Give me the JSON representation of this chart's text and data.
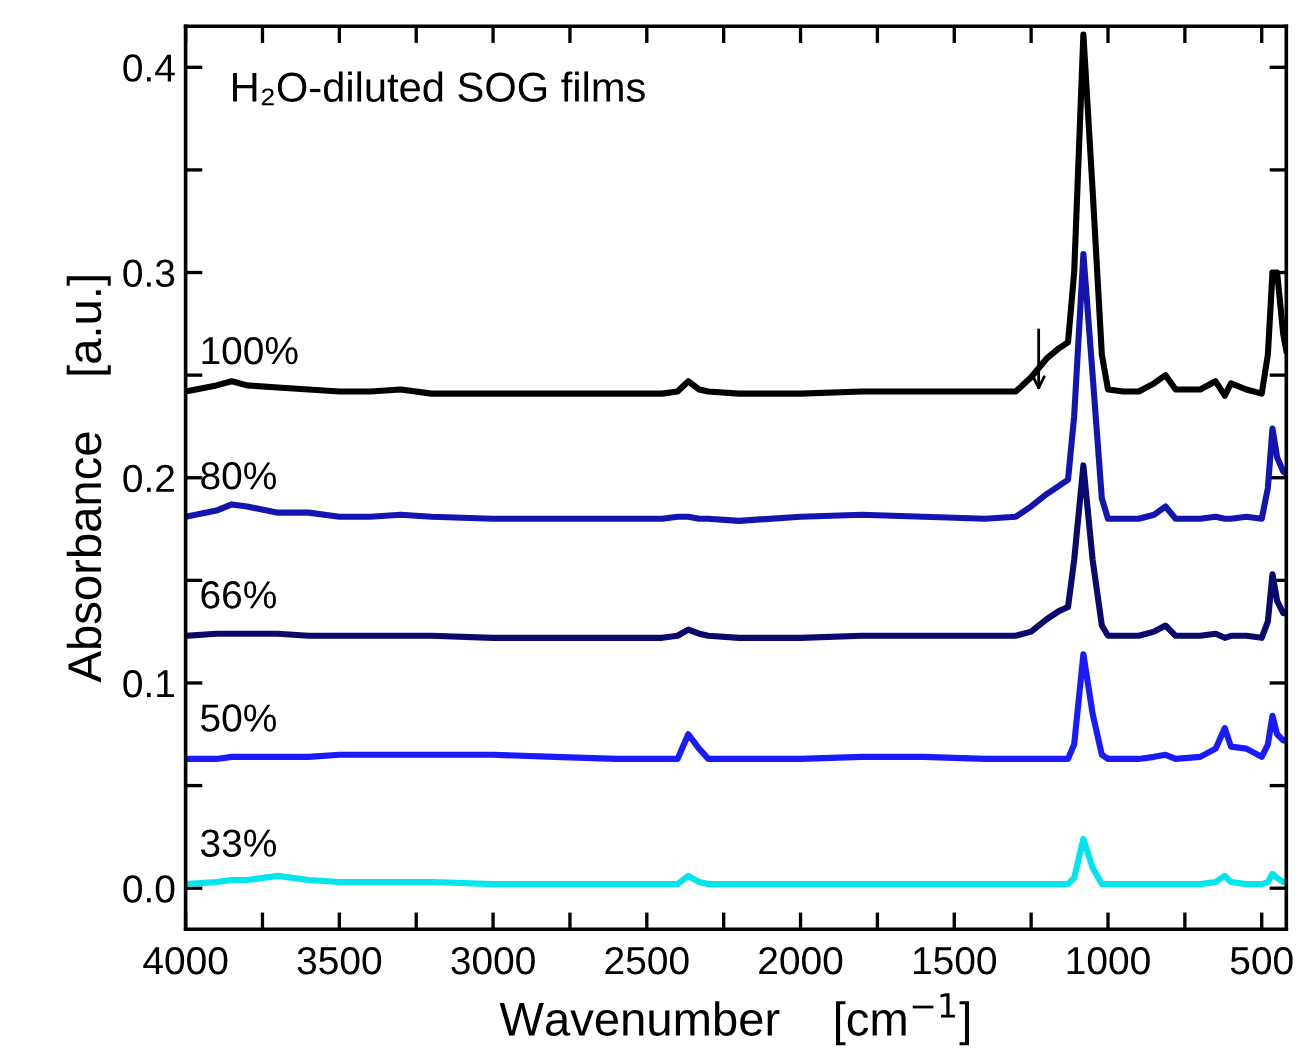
{
  "chart_data": {
    "type": "line",
    "title": "H₂O-diluted SOG films",
    "xlabel": "Wavenumber    [cm$^{−1}$]",
    "ylabel": "Absorbance    [a.u.]",
    "x": [
      4000,
      3900,
      3850,
      3800,
      3700,
      3600,
      3500,
      3400,
      3300,
      3200,
      3000,
      2800,
      2600,
      2450,
      2400,
      2365,
      2330,
      2300,
      2200,
      2000,
      1800,
      1600,
      1400,
      1300,
      1250,
      1200,
      1160,
      1130,
      1110,
      1080,
      1050,
      1020,
      1000,
      950,
      900,
      850,
      813,
      780,
      700,
      650,
      620,
      600,
      550,
      500,
      480,
      465,
      450,
      430,
      420
    ],
    "series": [
      {
        "name": "100%",
        "color": "#000000",
        "values": [
          0.242,
          0.245,
          0.247,
          0.245,
          0.244,
          0.243,
          0.242,
          0.242,
          0.243,
          0.241,
          0.241,
          0.241,
          0.241,
          0.241,
          0.242,
          0.247,
          0.243,
          0.242,
          0.241,
          0.241,
          0.242,
          0.242,
          0.242,
          0.242,
          0.249,
          0.258,
          0.263,
          0.266,
          0.3,
          0.416,
          0.34,
          0.26,
          0.243,
          0.242,
          0.242,
          0.246,
          0.25,
          0.243,
          0.243,
          0.247,
          0.24,
          0.246,
          0.243,
          0.241,
          0.26,
          0.3,
          0.3,
          0.27,
          0.262
        ]
      },
      {
        "name": "80%",
        "color": "#1414b0",
        "values": [
          0.181,
          0.184,
          0.187,
          0.186,
          0.183,
          0.183,
          0.181,
          0.181,
          0.182,
          0.181,
          0.18,
          0.18,
          0.18,
          0.18,
          0.181,
          0.181,
          0.18,
          0.18,
          0.179,
          0.181,
          0.182,
          0.181,
          0.18,
          0.181,
          0.186,
          0.192,
          0.196,
          0.199,
          0.23,
          0.309,
          0.25,
          0.19,
          0.18,
          0.18,
          0.18,
          0.182,
          0.186,
          0.18,
          0.18,
          0.181,
          0.18,
          0.18,
          0.181,
          0.18,
          0.195,
          0.224,
          0.21,
          0.203,
          0.202
        ]
      },
      {
        "name": "66%",
        "color": "#0a0a6e",
        "values": [
          0.123,
          0.124,
          0.124,
          0.124,
          0.124,
          0.123,
          0.123,
          0.123,
          0.123,
          0.123,
          0.122,
          0.122,
          0.122,
          0.122,
          0.123,
          0.126,
          0.124,
          0.123,
          0.122,
          0.122,
          0.123,
          0.123,
          0.123,
          0.123,
          0.125,
          0.131,
          0.135,
          0.137,
          0.16,
          0.206,
          0.16,
          0.128,
          0.123,
          0.123,
          0.123,
          0.125,
          0.128,
          0.123,
          0.123,
          0.124,
          0.122,
          0.123,
          0.123,
          0.122,
          0.13,
          0.153,
          0.14,
          0.134,
          0.134
        ]
      },
      {
        "name": "50%",
        "color": "#1a1aff",
        "values": [
          0.063,
          0.063,
          0.064,
          0.064,
          0.064,
          0.064,
          0.065,
          0.065,
          0.065,
          0.065,
          0.065,
          0.064,
          0.063,
          0.063,
          0.063,
          0.075,
          0.068,
          0.063,
          0.063,
          0.063,
          0.064,
          0.064,
          0.063,
          0.063,
          0.063,
          0.063,
          0.063,
          0.063,
          0.07,
          0.114,
          0.085,
          0.065,
          0.063,
          0.063,
          0.063,
          0.064,
          0.065,
          0.063,
          0.064,
          0.068,
          0.078,
          0.069,
          0.068,
          0.064,
          0.07,
          0.084,
          0.075,
          0.072,
          0.072
        ]
      },
      {
        "name": "33%",
        "color": "#00e5ee",
        "values": [
          0.002,
          0.003,
          0.004,
          0.004,
          0.006,
          0.004,
          0.003,
          0.003,
          0.003,
          0.003,
          0.002,
          0.002,
          0.002,
          0.002,
          0.002,
          0.006,
          0.003,
          0.002,
          0.002,
          0.002,
          0.002,
          0.002,
          0.002,
          0.002,
          0.002,
          0.002,
          0.002,
          0.002,
          0.005,
          0.024,
          0.01,
          0.002,
          0.002,
          0.002,
          0.002,
          0.002,
          0.002,
          0.002,
          0.002,
          0.003,
          0.006,
          0.003,
          0.002,
          0.002,
          0.003,
          0.007,
          0.005,
          0.003,
          0.003
        ]
      }
    ],
    "xlim": [
      4000,
      420
    ],
    "xticks": [
      4000,
      {
        "value": 3750,
        "label": null
      },
      3500,
      {
        "value": 3250,
        "label": null
      },
      3000,
      {
        "value": 2750,
        "label": null
      },
      2500,
      {
        "value": 2250,
        "label": null
      },
      2000,
      {
        "value": 1750,
        "label": null
      },
      1500,
      {
        "value": 1250,
        "label": null
      },
      1000,
      {
        "value": 750,
        "label": null
      },
      500
    ],
    "ylim": [
      -0.02,
      0.42
    ],
    "yticks": [
      {
        "value": 0.0,
        "label": "0.0"
      },
      {
        "value": 0.05,
        "label": null
      },
      0.1,
      {
        "value": 0.15,
        "label": null
      },
      0.2,
      {
        "value": 0.25,
        "label": null
      },
      0.3,
      {
        "value": 0.35,
        "label": null
      },
      0.4
    ],
    "grid": false,
    "legend": false,
    "marker": "none",
    "line_style": "solid"
  }
}
